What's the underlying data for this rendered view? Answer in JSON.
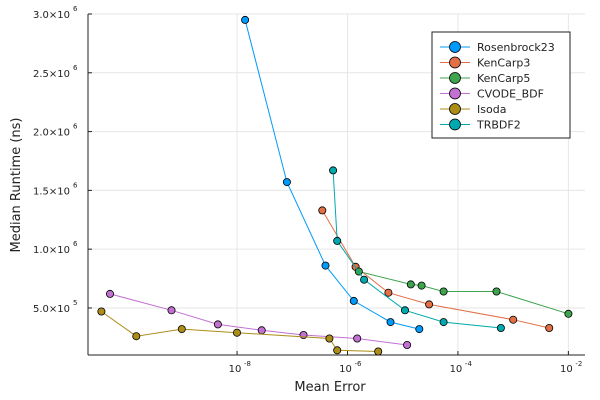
{
  "chart_data": {
    "type": "scatter",
    "title": "",
    "xlabel": "Mean Error",
    "ylabel": "Median Runtime (ns)",
    "x_scale": "log10",
    "xlim": [
      2e-11,
      0.02
    ],
    "ylim": [
      100000,
      3000000
    ],
    "x_ticks": [
      {
        "value": 1e-08,
        "base": "10",
        "exp": "-8"
      },
      {
        "value": 1e-06,
        "base": "10",
        "exp": "-6"
      },
      {
        "value": 0.0001,
        "base": "10",
        "exp": "-4"
      },
      {
        "value": 0.01,
        "base": "10",
        "exp": "-2"
      }
    ],
    "y_ticks": [
      {
        "value": 500000,
        "mant": "5.0×10",
        "exp": "5"
      },
      {
        "value": 1000000,
        "mant": "1.0×10",
        "exp": "6"
      },
      {
        "value": 1500000,
        "mant": "1.5×10",
        "exp": "6"
      },
      {
        "value": 2000000,
        "mant": "2.0×10",
        "exp": "6"
      },
      {
        "value": 2500000,
        "mant": "2.5×10",
        "exp": "6"
      },
      {
        "value": 3000000,
        "mant": "3.0×10",
        "exp": "6"
      }
    ],
    "grid": true,
    "legend_position": "top-right",
    "series": [
      {
        "name": "Rosenbrock23",
        "color": "#009AFA",
        "x": [
          1.4e-08,
          8e-08,
          4e-07,
          1.3e-06,
          6e-06,
          2e-05
        ],
        "y": [
          2950000,
          1570000,
          860000,
          560000,
          380000,
          320000
        ]
      },
      {
        "name": "KenCarp3",
        "color": "#E26F46",
        "x": [
          3.5e-07,
          1.4e-06,
          5.5e-06,
          3e-05,
          0.001,
          0.0045
        ],
        "y": [
          1330000,
          850000,
          630000,
          530000,
          400000,
          330000
        ]
      },
      {
        "name": "KenCarp5",
        "color": "#3EA44E",
        "x": [
          1.6e-06,
          1.4e-05,
          2.2e-05,
          5.5e-05,
          0.0005,
          0.01
        ],
        "y": [
          810000,
          700000,
          690000,
          640000,
          640000,
          450000
        ]
      },
      {
        "name": "CVODE_BDF",
        "color": "#C271D2",
        "x": [
          5e-11,
          6.5e-10,
          4.5e-09,
          2.8e-08,
          1.6e-07,
          1.5e-06,
          1.2e-05
        ],
        "y": [
          620000,
          480000,
          360000,
          310000,
          270000,
          240000,
          185000
        ]
      },
      {
        "name": "Isoda",
        "color": "#AC8D18",
        "x": [
          3.5e-11,
          1.5e-10,
          1e-09,
          1e-08,
          4.7e-07,
          6.5e-07,
          3.6e-06
        ],
        "y": [
          470000,
          260000,
          320000,
          290000,
          240000,
          140000,
          130000
        ]
      },
      {
        "name": "TRBDF2",
        "color": "#00A9AD",
        "x": [
          5.5e-07,
          6.5e-07,
          2e-06,
          1.1e-05,
          5.5e-05,
          0.0006
        ],
        "y": [
          1670000,
          1070000,
          740000,
          480000,
          380000,
          330000
        ]
      }
    ]
  }
}
